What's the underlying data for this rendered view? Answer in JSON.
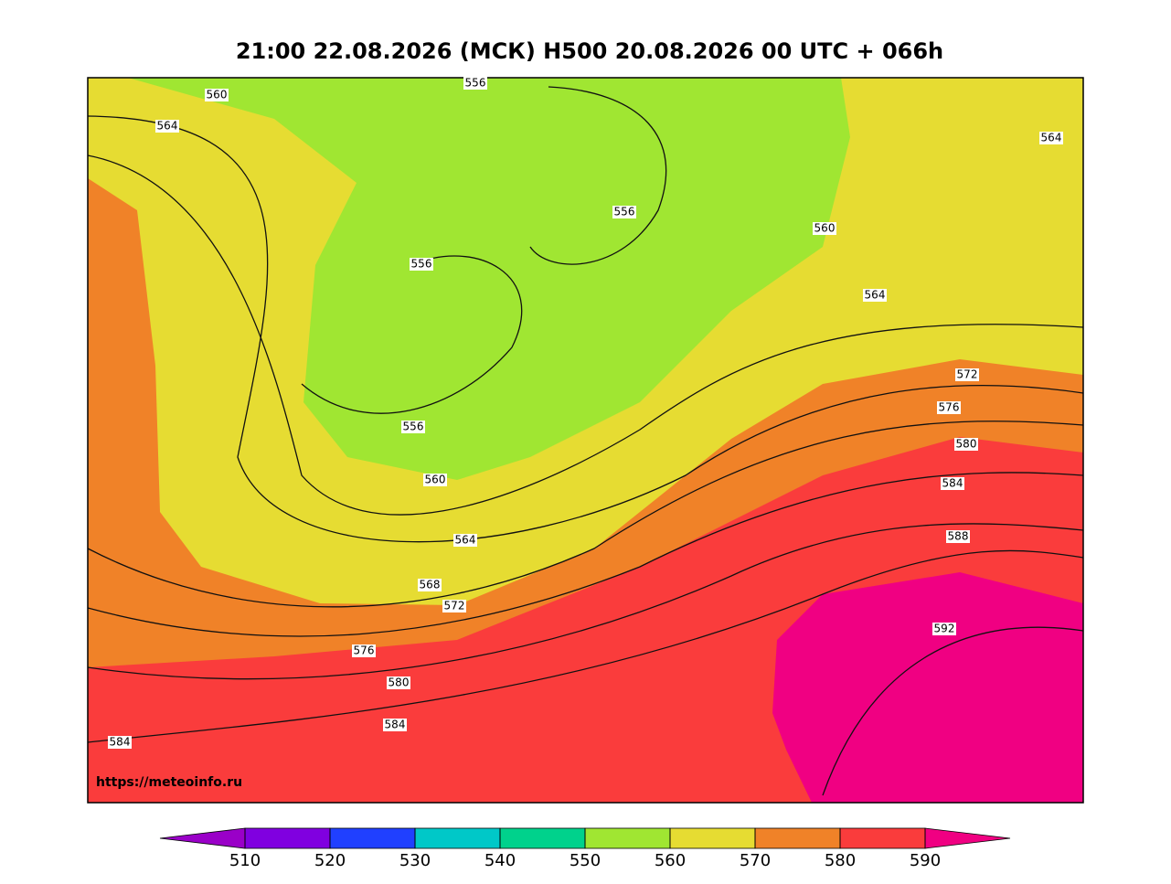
{
  "title": "21:00 22.08.2026 (МСК) H500  20.08.2026 00 UTC + 066h",
  "url": "https://meteoinfo.ru",
  "contour_labels": [
    560,
    556,
    564,
    564,
    556,
    560,
    556,
    564,
    572,
    576,
    556,
    580,
    560,
    584,
    564,
    588,
    568,
    572,
    592,
    576,
    580,
    584,
    584
  ],
  "colorbar": {
    "ticks": [
      510,
      520,
      530,
      540,
      550,
      560,
      570,
      580,
      590
    ],
    "colors": [
      "#9a00c8",
      "#8000e0",
      "#2040ff",
      "#00c8c8",
      "#00d28c",
      "#a0e632",
      "#e6dc32",
      "#f08228",
      "#fa3c3c",
      "#f00082"
    ]
  }
}
